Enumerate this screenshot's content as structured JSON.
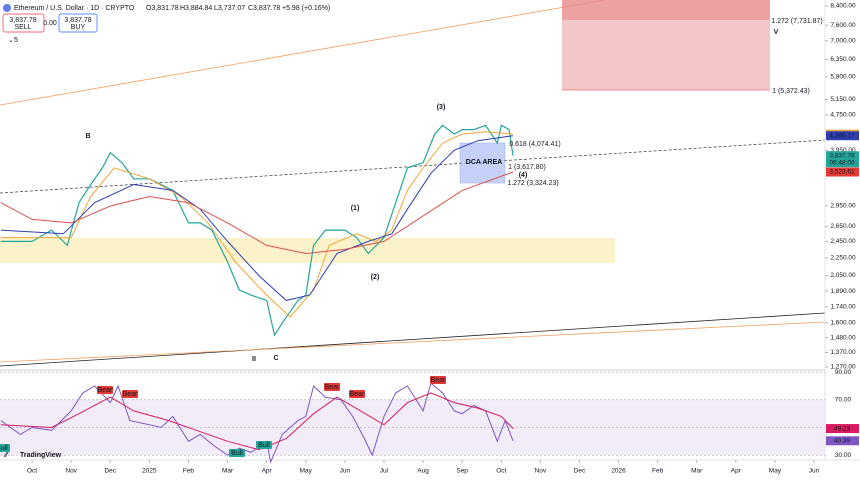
{
  "header": {
    "symbol": "Ethereum / U.S. Dollar · 1D · CRYPTO",
    "ohlc": [
      "O3,831.78",
      "H3,884.84",
      "L3,737.07",
      "C3,837.78",
      "+5.98 (+0.16%)"
    ],
    "sell_price": "3,837.78",
    "sell": "SELL",
    "spread": "0.00",
    "buy_price": "3,837.78",
    "buy": "BUY",
    "indicators": "5",
    "brand": "TradingView"
  },
  "annotations": [
    "B",
    "C",
    "II",
    "(1)",
    "(2)",
    "(3)",
    "(4)",
    "V",
    "DCA AREA",
    "0.618 (4,074.41)",
    "1 (3,617.80)",
    "1.272 (3,324.23)",
    "1.272 (7,731.87)",
    "1 (5,372.43)"
  ],
  "signals": [
    "Bear",
    "Bear",
    "Bear",
    "Bear",
    "Bear",
    "Bull",
    "Bull",
    "Bull"
  ],
  "chart_data": [
    {
      "type": "line",
      "log_scale": true,
      "xlim": [
        -0.82,
        20.28
      ],
      "xticks": [
        {
          "value": 0,
          "label": "Oct"
        },
        {
          "value": 1,
          "label": "Nov"
        },
        {
          "value": 2,
          "label": "Dec"
        },
        {
          "value": 3,
          "label": "2025"
        },
        {
          "value": 4,
          "label": "Feb"
        },
        {
          "value": 5,
          "label": "Mar"
        },
        {
          "value": 6,
          "label": "Apr"
        },
        {
          "value": 7,
          "label": "May"
        },
        {
          "value": 8,
          "label": "Jun"
        },
        {
          "value": 9,
          "label": "Jul"
        },
        {
          "value": 10,
          "label": "Aug"
        },
        {
          "value": 11,
          "label": "Sep"
        },
        {
          "value": 12,
          "label": "Oct"
        },
        {
          "value": 13,
          "label": "Nov"
        },
        {
          "value": 14,
          "label": "Dec"
        },
        {
          "value": 15,
          "label": "2026"
        },
        {
          "value": 16,
          "label": "Feb"
        },
        {
          "value": 17,
          "label": "Mar"
        },
        {
          "value": 18,
          "label": "Apr"
        },
        {
          "value": 19,
          "label": "May"
        },
        {
          "value": 20,
          "label": "Jun"
        }
      ],
      "ylim": [
        1270,
        8400
      ],
      "yticks": [
        {
          "value": 8400,
          "label": "8,400.00"
        },
        {
          "value": 7600,
          "label": "7,600.00"
        },
        {
          "value": 7000,
          "label": "7,000.00"
        },
        {
          "value": 6350,
          "label": "6,350.00"
        },
        {
          "value": 5800,
          "label": "5,800.00"
        },
        {
          "value": 5150,
          "label": "5,150.00"
        },
        {
          "value": 4750,
          "label": "4,750.00"
        },
        {
          "value": 3950,
          "label": "3,950.00"
        },
        {
          "value": 2950,
          "label": "2,950.00"
        },
        {
          "value": 2650,
          "label": "2,650.00"
        },
        {
          "value": 2450,
          "label": "2,450.00"
        },
        {
          "value": 2250,
          "label": "2,250.00"
        },
        {
          "value": 2050,
          "label": "2,050.00"
        },
        {
          "value": 1890,
          "label": "1,890.00"
        },
        {
          "value": 1740,
          "label": "1,740.00"
        },
        {
          "value": 1600,
          "label": "1,600.00"
        },
        {
          "value": 1480,
          "label": "1,480.00"
        },
        {
          "value": 1370,
          "label": "1,370.00"
        },
        {
          "value": 1270,
          "label": "1,270.00"
        }
      ],
      "series": [
        {
          "color": "#26a69a",
          "x": [
            -0.8,
            0,
            0.5,
            0.9,
            1.2,
            1.5,
            1.8,
            2.0,
            2.3,
            2.6,
            3.0,
            3.3,
            3.6,
            4.0,
            4.3,
            4.6,
            5.0,
            5.3,
            5.6,
            6.0,
            6.2,
            6.4,
            6.8,
            7.0,
            7.2,
            7.5,
            8.0,
            8.3,
            8.6,
            9.0,
            9.3,
            9.6,
            10.0,
            10.3,
            10.5,
            10.8,
            11.0,
            11.3,
            11.6,
            11.9,
            12.0,
            12.2,
            12.3
          ],
          "values": [
            2450,
            2450,
            2600,
            2400,
            3000,
            3300,
            3600,
            3900,
            3700,
            3400,
            3400,
            3300,
            3200,
            2700,
            2700,
            2600,
            2200,
            1900,
            1850,
            1800,
            1500,
            1600,
            1800,
            1850,
            2400,
            2600,
            2600,
            2500,
            2300,
            2500,
            3000,
            3600,
            3700,
            4300,
            4500,
            4300,
            4400,
            4400,
            4500,
            4100,
            4500,
            4400,
            3837.78
          ]
        },
        {
          "color": "#f0a73a",
          "x": [
            -0.8,
            1,
            1.5,
            2.1,
            3,
            3.8,
            4.5,
            5.2,
            6,
            6.6,
            7.2,
            7.6,
            8.3,
            8.8,
            9.2,
            9.6,
            10,
            10.5,
            11,
            11.6,
            12.3
          ],
          "values": [
            2500,
            2500,
            3100,
            3600,
            3400,
            3100,
            2700,
            2200,
            1850,
            1650,
            1900,
            2400,
            2550,
            2450,
            2600,
            3200,
            3600,
            4100,
            4300,
            4350,
            4295.75
          ]
        },
        {
          "color": "#2f3fb0",
          "x": [
            -0.8,
            0.8,
            1.6,
            2.6,
            3.6,
            4.3,
            5,
            5.8,
            6.5,
            7.1,
            7.8,
            8.6,
            9.2,
            9.6,
            10.2,
            10.8,
            11.4,
            12.3
          ],
          "values": [
            2600,
            2550,
            3000,
            3300,
            3200,
            2900,
            2450,
            2050,
            1800,
            1850,
            2300,
            2450,
            2550,
            2900,
            3500,
            3950,
            4150,
            4260.17
          ]
        },
        {
          "color": "#d9534f",
          "x": [
            -0.8,
            0,
            1,
            2,
            3,
            4,
            5,
            6,
            7,
            8,
            9,
            10,
            11,
            12.3
          ],
          "values": [
            3000,
            2750,
            2700,
            2950,
            3100,
            3000,
            2700,
            2400,
            2300,
            2350,
            2450,
            2800,
            3200,
            3523.61
          ]
        }
      ],
      "price_tags": [
        {
          "value": 4295.75,
          "label": "4,295.75",
          "color": "#f0a73a"
        },
        {
          "value": 4260.17,
          "label": "4,260.17",
          "color": "#2f3fb0"
        },
        {
          "value": 3837.78,
          "label": "3,837.78",
          "color": "#26a69a",
          "countdown": "08:48:00"
        },
        {
          "value": 3523.61,
          "label": "3,523.61",
          "color": "#e53935"
        }
      ]
    },
    {
      "type": "line",
      "ylim": [
        26.5,
        93
      ],
      "yticks": [
        {
          "value": 90,
          "label": "90.00"
        },
        {
          "value": 70,
          "label": "70.00"
        },
        {
          "value": 50,
          "label": "50.00"
        },
        {
          "value": 30,
          "label": "30.00"
        }
      ],
      "band": [
        30,
        70
      ],
      "series": [
        {
          "color": "#7e57c2",
          "x": [
            -0.8,
            -0.3,
            0,
            0.5,
            1.0,
            1.3,
            1.6,
            2.0,
            2.2,
            2.5,
            3.0,
            3.3,
            3.6,
            4.0,
            4.3,
            4.6,
            5.0,
            5.3,
            5.6,
            6.0,
            6.1,
            6.4,
            6.8,
            7.0,
            7.2,
            7.5,
            7.9,
            8.2,
            8.5,
            8.7,
            9.0,
            9.3,
            9.6,
            10.0,
            10.2,
            10.5,
            10.8,
            11.0,
            11.3,
            11.6,
            11.9,
            12.1,
            12.3
          ],
          "values": [
            55,
            45,
            50,
            48,
            62,
            75,
            80,
            68,
            80,
            55,
            52,
            50,
            58,
            40,
            45,
            38,
            30,
            35,
            32,
            40,
            25,
            45,
            55,
            58,
            80,
            72,
            70,
            58,
            42,
            30,
            58,
            75,
            80,
            62,
            82,
            75,
            62,
            60,
            66,
            62,
            40,
            55,
            40.39
          ]
        },
        {
          "color": "#d81b60",
          "x": [
            -0.8,
            0.5,
            1.2,
            2.0,
            2.6,
            3.5,
            4.2,
            5.0,
            5.8,
            6.5,
            7.2,
            7.8,
            8.4,
            9.0,
            9.6,
            10.2,
            10.8,
            11.4,
            12.0,
            12.3
          ],
          "values": [
            52,
            50,
            60,
            72,
            62,
            55,
            48,
            40,
            34,
            42,
            60,
            72,
            62,
            52,
            68,
            75,
            68,
            64,
            58,
            49.23
          ]
        }
      ],
      "price_tags": [
        {
          "value": 49.23,
          "label": "49.23",
          "color": "#d81b60"
        },
        {
          "value": 40.39,
          "label": "40.39",
          "color": "#7e57c2"
        }
      ]
    }
  ]
}
